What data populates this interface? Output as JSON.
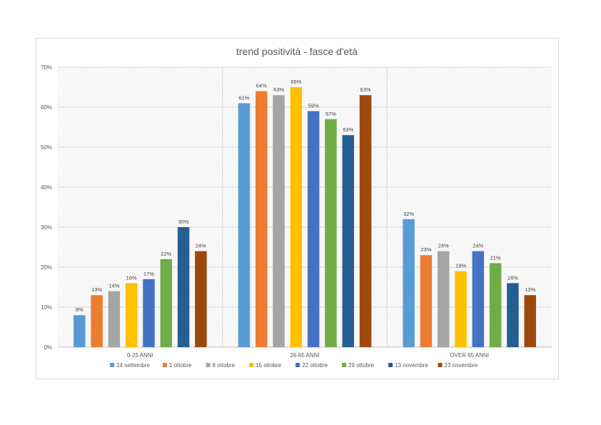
{
  "chart_data": {
    "type": "bar",
    "title": "trend positività - fasce d'età",
    "categories": [
      "0-25 ANNI",
      "26-65 ANNI",
      "OVER 65 ANNI"
    ],
    "yticks": [
      "0%",
      "10%",
      "20%",
      "30%",
      "40%",
      "50%",
      "60%",
      "70%"
    ],
    "ylim": [
      0,
      70
    ],
    "grid": true,
    "legend_position": "bottom",
    "series": [
      {
        "name": "24 settembre",
        "color": "#5b9bd5",
        "values": [
          8,
          61,
          32
        ],
        "labels": [
          "8%",
          "61%",
          "32%"
        ]
      },
      {
        "name": "1 ottobre",
        "color": "#ed7d31",
        "values": [
          13,
          64,
          23
        ],
        "labels": [
          "13%",
          "64%",
          "23%"
        ]
      },
      {
        "name": "8 ottobre",
        "color": "#a5a5a5",
        "values": [
          14,
          63,
          24
        ],
        "labels": [
          "14%",
          "63%",
          "24%"
        ]
      },
      {
        "name": "15 ottobre",
        "color": "#ffc000",
        "values": [
          16,
          65,
          19
        ],
        "labels": [
          "16%",
          "65%",
          "19%"
        ]
      },
      {
        "name": "22 ottobre",
        "color": "#4472c4",
        "values": [
          17,
          59,
          24
        ],
        "labels": [
          "17%",
          "59%",
          "24%"
        ]
      },
      {
        "name": "29 ottobre",
        "color": "#70ad47",
        "values": [
          22,
          57,
          21
        ],
        "labels": [
          "22%",
          "57%",
          "21%"
        ]
      },
      {
        "name": "13 novembre",
        "color": "#255e91",
        "values": [
          30,
          53,
          16
        ],
        "labels": [
          "30%",
          "53%",
          "16%"
        ]
      },
      {
        "name": "23 novembre",
        "color": "#9e480e",
        "values": [
          24,
          63,
          13
        ],
        "labels": [
          "24%",
          "63%",
          "13%"
        ]
      }
    ]
  }
}
